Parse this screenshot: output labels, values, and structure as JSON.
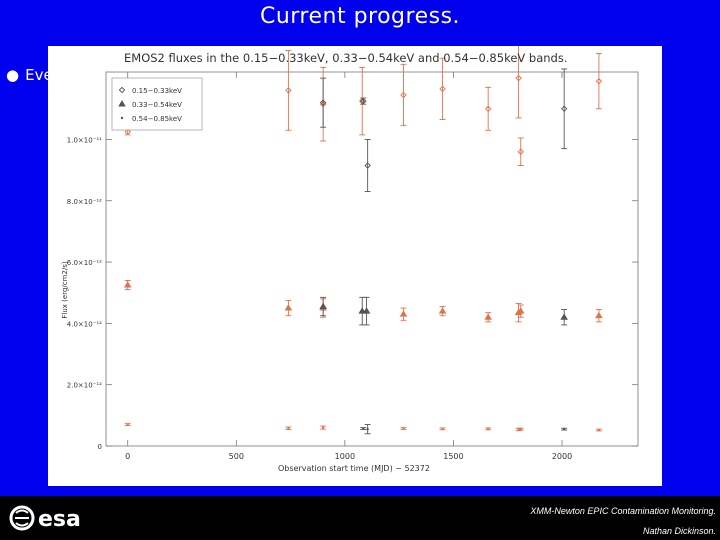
{
  "slide": {
    "title": "Current progress.",
    "bullet_text": "Eve"
  },
  "footer": {
    "line1": "XMM-Newton EPIC Contamination Monitoring.",
    "line2": "Nathan Dickinson.",
    "logo_text": "esa"
  },
  "colors": {
    "background": "#0000ee",
    "series_gray": "#555555",
    "series_orange": "#e0724a"
  },
  "chart_data": {
    "type": "scatter",
    "title": "EMOS2 fluxes in the 0.15−0.33keV, 0.33−0.54keV and 0.54−0.85keV bands.",
    "xlabel": "Observation start time (MJD) − 52372",
    "ylabel": "Flux (erg/cm2/s)",
    "xlim": [
      -100,
      2350
    ],
    "ylim": [
      0,
      1.22e-11
    ],
    "x_ticks": [
      0,
      500,
      1000,
      1500,
      2000
    ],
    "x_tick_labels": [
      "0",
      "500",
      "1000",
      "1500",
      "2000"
    ],
    "y_ticks": [
      0,
      2e-12,
      4e-12,
      6e-12,
      8e-12,
      1e-11
    ],
    "y_tick_labels": [
      "0",
      "2.0×10⁻¹²",
      "4.0×10⁻¹²",
      "6.0×10⁻¹²",
      "8.0×10⁻¹²",
      "1.0×10⁻¹¹"
    ],
    "legend": {
      "placement": "top-left",
      "entries": [
        "0.15−0.33keV",
        "0.33−0.54keV",
        "0.54−0.85keV"
      ]
    },
    "series": [
      {
        "name": "0.15−0.33keV",
        "marker": "diamond",
        "points": [
          {
            "x": 0,
            "y": 1.025e-11,
            "err": 1e-13,
            "color": "orange"
          },
          {
            "x": 740,
            "y": 1.16e-11,
            "err": 1.3e-12,
            "color": "orange"
          },
          {
            "x": 900,
            "y": 1.115e-11,
            "err": 1.2e-12,
            "color": "orange"
          },
          {
            "x": 900,
            "y": 1.12e-11,
            "err": 8e-13,
            "color": "gray"
          },
          {
            "x": 1080,
            "y": 1.125e-11,
            "err": 1.1e-12,
            "color": "orange"
          },
          {
            "x": 1085,
            "y": 1.125e-11,
            "err": 1e-13,
            "color": "gray"
          },
          {
            "x": 1105,
            "y": 9.15e-12,
            "err": 8.5e-13,
            "color": "gray"
          },
          {
            "x": 1270,
            "y": 1.145e-11,
            "err": 1e-12,
            "color": "orange"
          },
          {
            "x": 1450,
            "y": 1.165e-11,
            "err": 1e-12,
            "color": "orange"
          },
          {
            "x": 1660,
            "y": 1.1e-11,
            "err": 7e-13,
            "color": "orange"
          },
          {
            "x": 1800,
            "y": 1.2e-11,
            "err": 1.3e-12,
            "color": "orange"
          },
          {
            "x": 1810,
            "y": 9.6e-12,
            "err": 4.5e-13,
            "color": "orange"
          },
          {
            "x": 2010,
            "y": 1.1e-11,
            "err": 1.3e-12,
            "color": "gray"
          },
          {
            "x": 2170,
            "y": 1.19e-11,
            "err": 9e-13,
            "color": "orange"
          }
        ]
      },
      {
        "name": "0.33−0.54keV",
        "marker": "triangle",
        "points": [
          {
            "x": 0,
            "y": 5.25e-12,
            "err": 1.5e-13,
            "color": "orange"
          },
          {
            "x": 740,
            "y": 4.5e-12,
            "err": 2.5e-13,
            "color": "orange"
          },
          {
            "x": 900,
            "y": 4.5e-12,
            "err": 3e-13,
            "color": "orange"
          },
          {
            "x": 900,
            "y": 4.55e-12,
            "err": 3e-13,
            "color": "gray"
          },
          {
            "x": 1080,
            "y": 4.4e-12,
            "err": 4.5e-13,
            "color": "gray"
          },
          {
            "x": 1100,
            "y": 4.4e-12,
            "err": 4.5e-13,
            "color": "gray"
          },
          {
            "x": 1270,
            "y": 4.3e-12,
            "err": 2e-13,
            "color": "orange"
          },
          {
            "x": 1450,
            "y": 4.4e-12,
            "err": 1.5e-13,
            "color": "orange"
          },
          {
            "x": 1660,
            "y": 4.2e-12,
            "err": 1.5e-13,
            "color": "orange"
          },
          {
            "x": 1800,
            "y": 4.35e-12,
            "err": 3e-13,
            "color": "orange"
          },
          {
            "x": 1810,
            "y": 4.4e-12,
            "err": 2e-13,
            "color": "orange"
          },
          {
            "x": 2010,
            "y": 4.2e-12,
            "err": 2.5e-13,
            "color": "gray"
          },
          {
            "x": 2170,
            "y": 4.25e-12,
            "err": 2e-13,
            "color": "orange"
          }
        ]
      },
      {
        "name": "0.54−0.85keV",
        "marker": "dot",
        "points": [
          {
            "x": 0,
            "y": 7e-13,
            "err": 3e-14,
            "color": "orange"
          },
          {
            "x": 740,
            "y": 5.8e-13,
            "err": 4e-14,
            "color": "orange"
          },
          {
            "x": 900,
            "y": 6e-13,
            "err": 5e-14,
            "color": "orange"
          },
          {
            "x": 1085,
            "y": 5.7e-13,
            "err": 3e-14,
            "color": "gray"
          },
          {
            "x": 1105,
            "y": 5.5e-13,
            "err": 1.5e-13,
            "color": "gray"
          },
          {
            "x": 1270,
            "y": 5.7e-13,
            "err": 3e-14,
            "color": "orange"
          },
          {
            "x": 1450,
            "y": 5.6e-13,
            "err": 3e-14,
            "color": "orange"
          },
          {
            "x": 1660,
            "y": 5.6e-13,
            "err": 3e-14,
            "color": "orange"
          },
          {
            "x": 1800,
            "y": 5.4e-13,
            "err": 4e-14,
            "color": "orange"
          },
          {
            "x": 1810,
            "y": 5.5e-13,
            "err": 3e-14,
            "color": "orange"
          },
          {
            "x": 2010,
            "y": 5.5e-13,
            "err": 3e-14,
            "color": "gray"
          },
          {
            "x": 2170,
            "y": 5.2e-13,
            "err": 3e-14,
            "color": "orange"
          }
        ]
      }
    ]
  }
}
